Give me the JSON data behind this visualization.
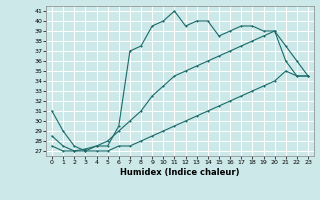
{
  "title": "",
  "xlabel": "Humidex (Indice chaleur)",
  "ylabel": "",
  "bg_color": "#cce8e8",
  "grid_color": "#ffffff",
  "line_color": "#1a6b6b",
  "x_ticks": [
    0,
    1,
    2,
    3,
    4,
    5,
    6,
    7,
    8,
    9,
    10,
    11,
    12,
    13,
    14,
    15,
    16,
    17,
    18,
    19,
    20,
    21,
    22,
    23
  ],
  "y_ticks": [
    27,
    28,
    29,
    30,
    31,
    32,
    33,
    34,
    35,
    36,
    37,
    38,
    39,
    40,
    41
  ],
  "xlim": [
    -0.5,
    23.5
  ],
  "ylim": [
    26.5,
    41.5
  ],
  "line1_x": [
    0,
    1,
    2,
    3,
    4,
    5,
    6,
    7,
    8,
    9,
    10,
    11,
    12,
    13,
    14,
    15,
    16,
    17,
    18,
    19,
    20,
    21,
    22,
    23
  ],
  "line1_y": [
    31,
    29,
    27.5,
    27,
    27.5,
    27.5,
    29.5,
    37,
    37.5,
    39.5,
    40,
    41,
    39.5,
    40,
    40,
    38.5,
    39,
    39.5,
    39.5,
    39,
    39,
    37.5,
    36,
    34.5
  ],
  "line2_x": [
    0,
    1,
    2,
    3,
    4,
    5,
    6,
    7,
    8,
    9,
    10,
    11,
    12,
    13,
    14,
    15,
    16,
    17,
    18,
    19,
    20,
    21,
    22,
    23
  ],
  "line2_y": [
    28.5,
    27.5,
    27,
    27.2,
    27.5,
    28,
    29,
    30,
    31,
    32.5,
    33.5,
    34.5,
    35,
    35.5,
    36,
    36.5,
    37,
    37.5,
    38,
    38.5,
    39,
    36,
    34.5,
    34.5
  ],
  "line3_x": [
    0,
    1,
    2,
    3,
    4,
    5,
    6,
    7,
    8,
    9,
    10,
    11,
    12,
    13,
    14,
    15,
    16,
    17,
    18,
    19,
    20,
    21,
    22,
    23
  ],
  "line3_y": [
    27.5,
    27,
    27,
    27,
    27,
    27,
    27.5,
    27.5,
    28,
    28.5,
    29,
    29.5,
    30,
    30.5,
    31,
    31.5,
    32,
    32.5,
    33,
    33.5,
    34,
    35,
    34.5,
    34.5
  ],
  "xlabel_fontsize": 6,
  "tick_fontsize": 4.5,
  "linewidth": 0.8,
  "markersize": 2.0
}
